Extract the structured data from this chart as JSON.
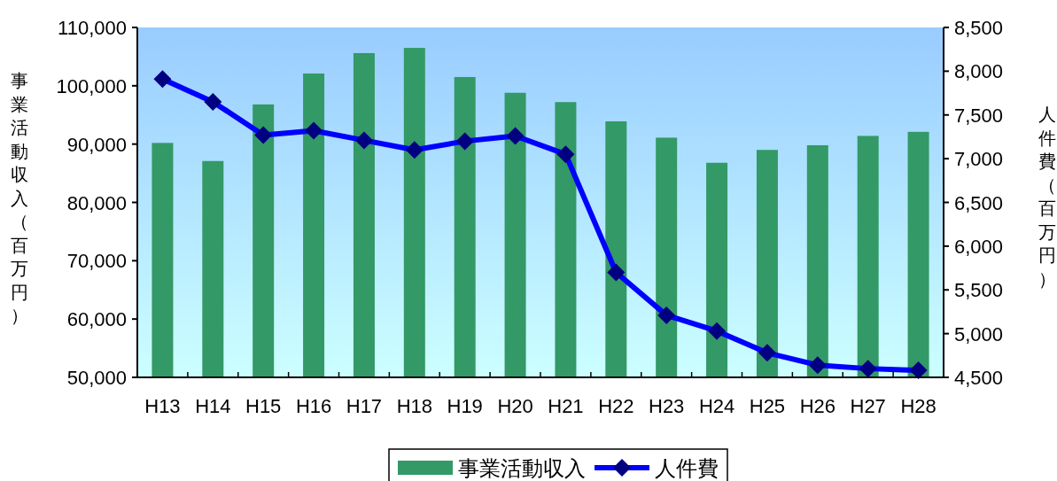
{
  "chart_data": {
    "type": "bar",
    "categories": [
      "H13",
      "H14",
      "H15",
      "H16",
      "H17",
      "H18",
      "H19",
      "H20",
      "H21",
      "H22",
      "H23",
      "H24",
      "H25",
      "H26",
      "H27",
      "H28"
    ],
    "series": [
      {
        "name": "事業活動収入",
        "type": "bar",
        "color": "#339966",
        "values": [
          90200,
          87100,
          96800,
          102100,
          105600,
          106500,
          101500,
          98800,
          97200,
          93900,
          91100,
          86800,
          89000,
          89800,
          91400,
          92100
        ]
      },
      {
        "name": "人件費",
        "type": "line",
        "axis": "y2",
        "color": "#0000ff",
        "marker": "diamond",
        "values": [
          7910,
          7650,
          7270,
          7320,
          7210,
          7100,
          7200,
          7260,
          7050,
          5700,
          5210,
          5030,
          4780,
          4640,
          4600,
          4580
        ]
      }
    ],
    "ylabel": "事業活動収入（百万円）",
    "y2label": "人件費（百万円）",
    "ylim": [
      50000,
      110000
    ],
    "yticks": [
      {
        "value": 50000,
        "label": "50,000"
      },
      {
        "value": 60000,
        "label": "60,000"
      },
      {
        "value": 70000,
        "label": "70,000"
      },
      {
        "value": 80000,
        "label": "80,000"
      },
      {
        "value": 90000,
        "label": "90,000"
      },
      {
        "value": 100000,
        "label": "100,000"
      },
      {
        "value": 110000,
        "label": "110,000"
      }
    ],
    "y2lim": [
      4500,
      8500
    ],
    "y2ticks": [
      {
        "value": 4500,
        "label": "4,500"
      },
      {
        "value": 5000,
        "label": "5,000"
      },
      {
        "value": 5500,
        "label": "5,500"
      },
      {
        "value": 6000,
        "label": "6,000"
      },
      {
        "value": 6500,
        "label": "6,500"
      },
      {
        "value": 7000,
        "label": "7,000"
      },
      {
        "value": 7500,
        "label": "7,500"
      },
      {
        "value": 8000,
        "label": "8,000"
      },
      {
        "value": 8500,
        "label": "8,500"
      }
    ],
    "legend": "bottom",
    "grid": false
  }
}
